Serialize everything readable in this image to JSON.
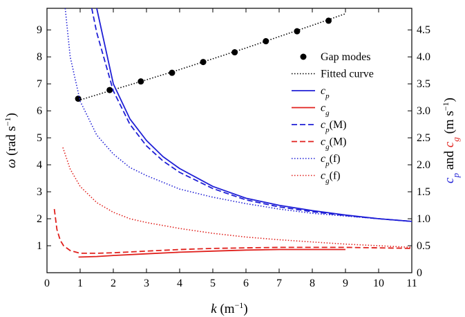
{
  "chart_data": {
    "type": "line",
    "title": "",
    "xlabel": {
      "pre": "k",
      "mid": " (m",
      "sup": "−1",
      "post": ")"
    },
    "ylabel_left": {
      "pre": "ω",
      "mid": " (rad s",
      "sup": "−1",
      "post": ")"
    },
    "ylabel_right": {
      "p1": "c",
      "p1sub": "p",
      "p2": " and ",
      "p3": "c",
      "p3sub": "g",
      "p4": " (m s",
      "p4sup": "−1",
      "p5": ")"
    },
    "xlim": [
      0,
      11
    ],
    "ylim_left": [
      0,
      9.8
    ],
    "ylim_right": [
      0,
      4.9
    ],
    "x_ticks": [
      0,
      1,
      2,
      3,
      4,
      5,
      6,
      7,
      8,
      9,
      10,
      11
    ],
    "y_left_ticks": [
      1,
      2,
      3,
      4,
      5,
      6,
      7,
      8,
      9
    ],
    "y_right_ticks": [
      "0",
      "0.5",
      "1.0",
      "1.5",
      "2.0",
      "2.5",
      "3.0",
      "3.5",
      "4.0",
      "4.5"
    ],
    "legend_position": "right",
    "series": [
      {
        "name": "Gap modes",
        "name_base": "Gap modes",
        "name_sub": "",
        "name_suffix": "",
        "style": "markers",
        "color": "#000000",
        "axis": "left",
        "x": [
          0.94,
          1.89,
          2.83,
          3.77,
          4.71,
          5.66,
          6.6,
          7.54,
          8.49
        ],
        "y": [
          6.45,
          6.77,
          7.09,
          7.41,
          7.81,
          8.17,
          8.58,
          8.95,
          9.34
        ]
      },
      {
        "name": "Fitted curve",
        "name_base": "Fitted curve",
        "name_sub": "",
        "name_suffix": "",
        "style": "dotted",
        "color": "#000000",
        "axis": "left",
        "x": [
          0.94,
          2.0,
          3.0,
          4.0,
          5.0,
          6.0,
          7.0,
          8.0,
          9.0
        ],
        "y": [
          6.38,
          6.78,
          7.15,
          7.53,
          7.93,
          8.33,
          8.75,
          9.17,
          9.6
        ]
      },
      {
        "name": "c_p",
        "name_base": "c",
        "name_sub": "p",
        "name_suffix": "",
        "style": "solid",
        "color": "#1f1fd6",
        "axis": "right",
        "x": [
          1.5,
          2.0,
          2.5,
          3.0,
          3.5,
          4.0,
          5.0,
          6.0,
          7.0,
          8.0,
          9.0,
          10.0,
          11.0
        ],
        "y": [
          4.9,
          3.5,
          2.85,
          2.45,
          2.15,
          1.93,
          1.6,
          1.38,
          1.25,
          1.15,
          1.07,
          1.0,
          0.95
        ]
      },
      {
        "name": "c_g",
        "name_base": "c",
        "name_sub": "g",
        "name_suffix": "",
        "style": "solid",
        "color": "#e0201c",
        "axis": "right",
        "x": [
          0.95,
          1.5,
          2.0,
          3.0,
          4.0,
          5.0,
          6.0,
          7.0,
          8.0,
          9.0
        ],
        "y": [
          0.29,
          0.3,
          0.32,
          0.35,
          0.38,
          0.4,
          0.42,
          0.43,
          0.43,
          0.43
        ]
      },
      {
        "name": "c_p(M)",
        "name_base": "c",
        "name_sub": "p",
        "name_suffix": "(M)",
        "style": "dashed",
        "color": "#1f1fd6",
        "axis": "right",
        "x": [
          1.35,
          1.5,
          2.0,
          2.5,
          3.0,
          3.5,
          4.0,
          5.0,
          6.0,
          7.0,
          8.0,
          9.0,
          10.0,
          11.0
        ],
        "y": [
          4.9,
          4.45,
          3.37,
          2.75,
          2.35,
          2.07,
          1.86,
          1.56,
          1.35,
          1.22,
          1.13,
          1.06,
          1.0,
          0.95
        ]
      },
      {
        "name": "c_g(M)",
        "name_base": "c",
        "name_sub": "g",
        "name_suffix": "(M)",
        "style": "dashed",
        "color": "#e0201c",
        "axis": "right",
        "x": [
          0.22,
          0.3,
          0.4,
          0.5,
          0.7,
          1.0,
          1.5,
          2.0,
          3.0,
          4.0,
          5.0,
          6.0,
          7.0,
          8.0,
          9.0,
          10.0,
          11.0
        ],
        "y": [
          1.18,
          0.8,
          0.6,
          0.5,
          0.41,
          0.36,
          0.36,
          0.37,
          0.4,
          0.43,
          0.45,
          0.46,
          0.47,
          0.47,
          0.47,
          0.46,
          0.45
        ]
      },
      {
        "name": "c_p(f)",
        "name_base": "c",
        "name_sub": "p",
        "name_suffix": "(f)",
        "style": "dotted",
        "color": "#1f1fd6",
        "axis": "right",
        "x": [
          0.55,
          0.7,
          1.0,
          1.5,
          2.0,
          2.5,
          3.0,
          4.0,
          5.0,
          6.0,
          7.0,
          8.0,
          9.0,
          10.0,
          11.0
        ],
        "y": [
          4.9,
          4.0,
          3.18,
          2.55,
          2.2,
          1.95,
          1.8,
          1.55,
          1.4,
          1.28,
          1.18,
          1.1,
          1.05,
          1.0,
          0.95
        ]
      },
      {
        "name": "c_g(f)",
        "name_base": "c",
        "name_sub": "g",
        "name_suffix": "(f)",
        "style": "dotted",
        "color": "#e0201c",
        "axis": "right",
        "x": [
          0.48,
          0.7,
          1.0,
          1.5,
          2.0,
          2.5,
          3.0,
          4.0,
          5.0,
          6.0,
          7.0,
          8.0,
          9.0,
          10.0,
          11.0
        ],
        "y": [
          2.32,
          1.92,
          1.6,
          1.3,
          1.12,
          1.0,
          0.93,
          0.82,
          0.73,
          0.66,
          0.61,
          0.57,
          0.53,
          0.5,
          0.47
        ]
      }
    ]
  }
}
